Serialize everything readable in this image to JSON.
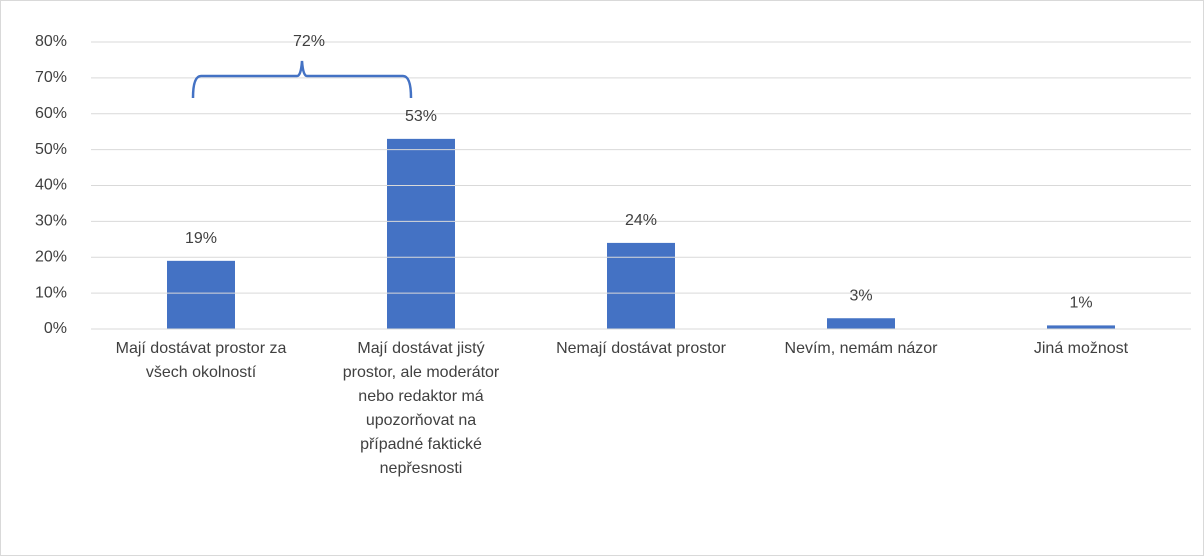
{
  "chart_data": {
    "type": "bar",
    "categories": [
      "Mají dostávat prostor za všech okolností",
      "Mají dostávat jistý prostor, ale moderátor nebo redaktor má upozorňovat na případné faktické nepřesnosti",
      "Nemají dostávat prostor",
      "Nevím, nemám názor",
      "Jiná možnost"
    ],
    "values": [
      19,
      53,
      24,
      3,
      1
    ],
    "value_labels": [
      "19%",
      "53%",
      "24%",
      "3%",
      "1%"
    ],
    "color": "#4472c4",
    "ylim": [
      0,
      80
    ],
    "yticks": [
      {
        "value": 0,
        "label": "0%"
      },
      {
        "value": 10,
        "label": "10%"
      },
      {
        "value": 20,
        "label": "20%"
      },
      {
        "value": 30,
        "label": "30%"
      },
      {
        "value": 40,
        "label": "40%"
      },
      {
        "value": 50,
        "label": "50%"
      },
      {
        "value": 60,
        "label": "60%"
      },
      {
        "value": 70,
        "label": "70%"
      },
      {
        "value": 80,
        "label": "80%"
      }
    ],
    "grid": true,
    "annotation": "72%"
  }
}
